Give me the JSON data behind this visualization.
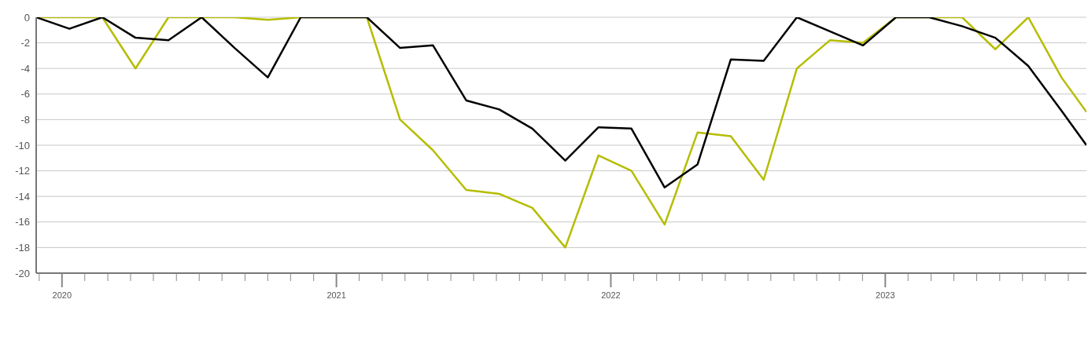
{
  "chart_data": {
    "type": "line",
    "x": [
      2019.906,
      2020.027,
      2020.147,
      2020.268,
      2020.388,
      2020.509,
      2020.629,
      2020.75,
      2020.87,
      2020.991,
      2021.111,
      2021.232,
      2021.352,
      2021.473,
      2021.593,
      2021.714,
      2021.834,
      2021.955,
      2022.075,
      2022.196,
      2022.316,
      2022.437,
      2022.557,
      2022.678,
      2022.798,
      2022.919,
      2023.039,
      2023.16,
      2023.28,
      2023.401,
      2023.521,
      2023.642,
      2023.733
    ],
    "series": [
      {
        "color": "#b5bd00",
        "values": [
          0,
          0,
          0,
          -4,
          0,
          0,
          0,
          -0.2,
          0,
          0,
          0,
          -8,
          -10.4,
          -13.5,
          -13.8,
          -14.9,
          -18,
          -10.8,
          -12,
          -16.2,
          -9,
          -9.3,
          -12.7,
          -4,
          -1.8,
          -2,
          0,
          0,
          0,
          -2.5,
          0,
          -4.7,
          -7.4
        ]
      },
      {
        "color": "#000000",
        "values": [
          0,
          -0.9,
          0,
          -1.6,
          -1.8,
          0,
          -2.4,
          -4.7,
          0,
          0,
          0,
          -2.4,
          -2.2,
          -6.5,
          -7.2,
          -8.7,
          -11.2,
          -8.6,
          -8.7,
          -13.3,
          -11.5,
          -3.3,
          -3.4,
          0,
          -1.1,
          -2.2,
          0,
          0,
          -0.7,
          -1.6,
          -3.8,
          -7.3,
          -10
        ]
      }
    ],
    "xlim": [
      2019.906,
      2023.733
    ],
    "xticks": [
      {
        "value": 2019.917,
        "label": null
      },
      {
        "value": 2020,
        "label": "2020"
      },
      {
        "value": 2020.083,
        "label": null
      },
      {
        "value": 2020.167,
        "label": null
      },
      {
        "value": 2020.25,
        "label": null
      },
      {
        "value": 2020.333,
        "label": null
      },
      {
        "value": 2020.417,
        "label": null
      },
      {
        "value": 2020.5,
        "label": null
      },
      {
        "value": 2020.583,
        "label": null
      },
      {
        "value": 2020.667,
        "label": null
      },
      {
        "value": 2020.75,
        "label": null
      },
      {
        "value": 2020.833,
        "label": null
      },
      {
        "value": 2020.917,
        "label": null
      },
      {
        "value": 2021,
        "label": "2021"
      },
      {
        "value": 2021.083,
        "label": null
      },
      {
        "value": 2021.167,
        "label": null
      },
      {
        "value": 2021.25,
        "label": null
      },
      {
        "value": 2021.333,
        "label": null
      },
      {
        "value": 2021.417,
        "label": null
      },
      {
        "value": 2021.5,
        "label": null
      },
      {
        "value": 2021.583,
        "label": null
      },
      {
        "value": 2021.667,
        "label": null
      },
      {
        "value": 2021.75,
        "label": null
      },
      {
        "value": 2021.833,
        "label": null
      },
      {
        "value": 2021.917,
        "label": null
      },
      {
        "value": 2022,
        "label": "2022"
      },
      {
        "value": 2022.083,
        "label": null
      },
      {
        "value": 2022.167,
        "label": null
      },
      {
        "value": 2022.25,
        "label": null
      },
      {
        "value": 2022.333,
        "label": null
      },
      {
        "value": 2022.417,
        "label": null
      },
      {
        "value": 2022.5,
        "label": null
      },
      {
        "value": 2022.583,
        "label": null
      },
      {
        "value": 2022.667,
        "label": null
      },
      {
        "value": 2022.75,
        "label": null
      },
      {
        "value": 2022.833,
        "label": null
      },
      {
        "value": 2022.917,
        "label": null
      },
      {
        "value": 2023,
        "label": "2023"
      },
      {
        "value": 2023.083,
        "label": null
      },
      {
        "value": 2023.167,
        "label": null
      },
      {
        "value": 2023.25,
        "label": null
      },
      {
        "value": 2023.333,
        "label": null
      },
      {
        "value": 2023.417,
        "label": null
      },
      {
        "value": 2023.5,
        "label": null
      },
      {
        "value": 2023.583,
        "label": null
      },
      {
        "value": 2023.667,
        "label": null
      }
    ],
    "ylim": [
      -20,
      0
    ],
    "yticks": [
      -20,
      -18,
      -16,
      -14,
      -12,
      -10,
      -8,
      -6,
      -4,
      -2,
      0
    ],
    "grid": "y",
    "marker": "none",
    "line_style": "solid"
  }
}
